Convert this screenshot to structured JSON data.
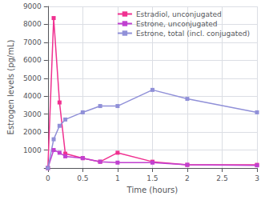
{
  "chart_data": {
    "type": "line",
    "xlabel": "Time (hours)",
    "ylabel": "Estrogen levels (pg/mL)",
    "xlim": [
      0,
      3.0
    ],
    "ylim": [
      0,
      9000
    ],
    "xticks": [
      0,
      0.5,
      1,
      1.5,
      2,
      2.5,
      3
    ],
    "yticks": [
      {
        "value": 0,
        "label": ""
      },
      1000,
      2000,
      3000,
      4000,
      5000,
      6000,
      7000,
      8000,
      9000
    ],
    "grid": true,
    "legend": "upper right",
    "x": [
      0,
      0.083,
      0.167,
      0.25,
      0.5,
      0.75,
      1.0,
      1.5,
      2.0,
      3.0
    ],
    "series": [
      {
        "name": "Estradiol, unconjugated",
        "color": "#f03090",
        "marker": "square",
        "values": [
          0,
          8350,
          3650,
          800,
          550,
          350,
          850,
          350,
          175,
          175
        ]
      },
      {
        "name": "Estrone, unconjugated",
        "color": "#c040d0",
        "marker": "square",
        "values": [
          0,
          1000,
          850,
          650,
          550,
          350,
          300,
          300,
          175,
          150
        ]
      },
      {
        "name": "Estrone, total (incl. conjugated)",
        "color": "#9090d8",
        "marker": "square",
        "values": [
          0,
          1600,
          2350,
          2700,
          3100,
          3450,
          3450,
          4350,
          3850,
          3100
        ]
      }
    ]
  }
}
